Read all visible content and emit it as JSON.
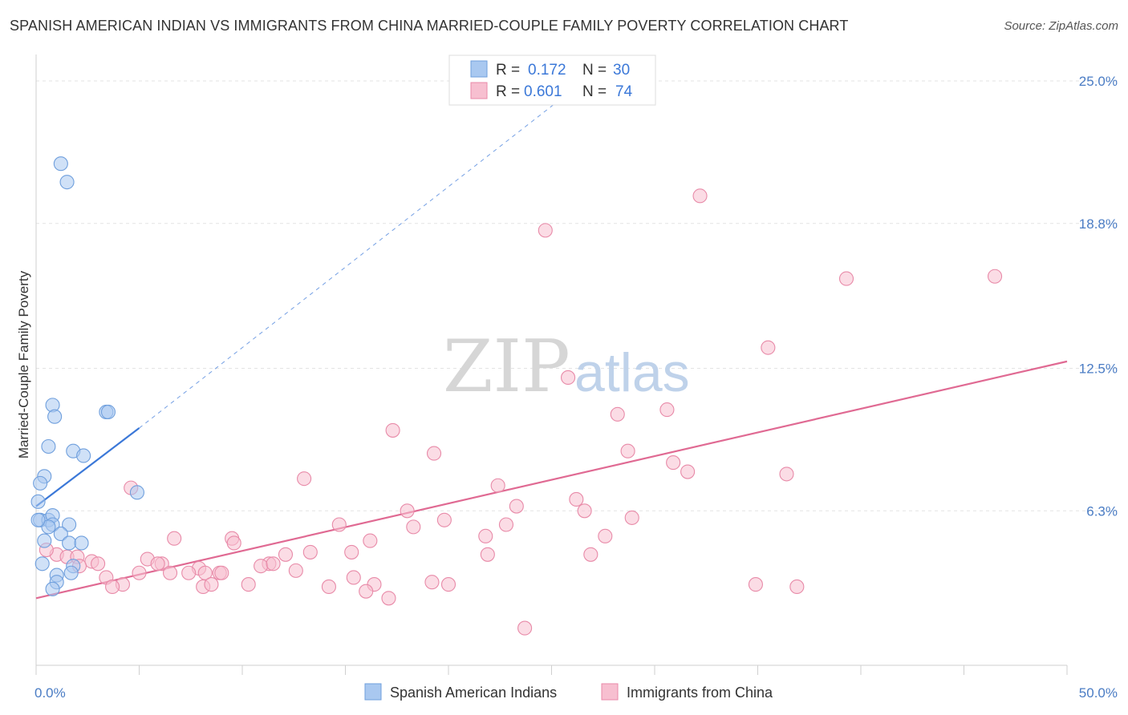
{
  "header": {
    "title": "SPANISH AMERICAN INDIAN VS IMMIGRANTS FROM CHINA MARRIED-COUPLE FAMILY POVERTY CORRELATION CHART",
    "source": "Source: ZipAtlas.com"
  },
  "watermark": {
    "zip": "ZIP",
    "atlas": "atlas"
  },
  "legend_top": {
    "rows": [
      {
        "r_label": "R = ",
        "r_value": "0.172",
        "n_label": "N = ",
        "n_value": "30",
        "color": "#a9c8f0"
      },
      {
        "r_label": "R = ",
        "r_value": "0.601",
        "n_label": "N = ",
        "n_value": "74",
        "color": "#f7bfd0"
      }
    ]
  },
  "chart_data": {
    "type": "scatter",
    "title": "SPANISH AMERICAN INDIAN VS IMMIGRANTS FROM CHINA MARRIED-COUPLE FAMILY POVERTY CORRELATION CHART",
    "xlabel": "",
    "ylabel": "Married-Couple Family Poverty",
    "xlim": [
      0,
      50
    ],
    "ylim": [
      0,
      25.8
    ],
    "x_tick_labels": [
      {
        "value": 0,
        "label": "0.0%"
      },
      {
        "value": 50,
        "label": "50.0%"
      }
    ],
    "y_tick_labels": [
      {
        "value": 6.3,
        "label": "6.3%"
      },
      {
        "value": 12.5,
        "label": "12.5%"
      },
      {
        "value": 18.8,
        "label": "18.8%"
      },
      {
        "value": 25.0,
        "label": "25.0%"
      }
    ],
    "x_minor_ticks": [
      0,
      5,
      10,
      15,
      20,
      25,
      30,
      35,
      40,
      45,
      50
    ],
    "series": [
      {
        "name": "Spanish American Indians",
        "color": "#a9c8f0",
        "stroke": "#6f9fdd",
        "trend_color": "#3b78d8",
        "trend": {
          "x0": 0,
          "y0": 6.5,
          "x1": 5,
          "y1": 9.9,
          "dashed_to_x": 26,
          "dashed_to_y": 24.6
        },
        "points": [
          [
            1.2,
            21.4
          ],
          [
            1.5,
            20.6
          ],
          [
            0.8,
            10.9
          ],
          [
            0.9,
            10.4
          ],
          [
            3.4,
            10.6
          ],
          [
            3.5,
            10.6
          ],
          [
            0.6,
            9.1
          ],
          [
            1.8,
            8.9
          ],
          [
            2.3,
            8.7
          ],
          [
            0.4,
            7.8
          ],
          [
            0.2,
            7.5
          ],
          [
            4.9,
            7.1
          ],
          [
            0.1,
            6.7
          ],
          [
            0.2,
            5.9
          ],
          [
            0.6,
            5.9
          ],
          [
            0.8,
            6.1
          ],
          [
            0.8,
            5.7
          ],
          [
            1.6,
            5.7
          ],
          [
            0.6,
            5.6
          ],
          [
            1.2,
            5.3
          ],
          [
            0.4,
            5.0
          ],
          [
            1.6,
            4.9
          ],
          [
            2.2,
            4.9
          ],
          [
            1.8,
            3.9
          ],
          [
            0.3,
            4.0
          ],
          [
            1.7,
            3.6
          ],
          [
            1.0,
            3.5
          ],
          [
            1.0,
            3.2
          ],
          [
            0.8,
            2.9
          ],
          [
            0.1,
            5.9
          ]
        ]
      },
      {
        "name": "Immigrants from China",
        "color": "#f7bfd0",
        "stroke": "#e88aa8",
        "trend_color": "#e06a93",
        "trend": {
          "x0": 0,
          "y0": 2.5,
          "x1": 50,
          "y1": 12.8
        },
        "points": [
          [
            32.2,
            20.0
          ],
          [
            24.7,
            18.5
          ],
          [
            39.3,
            16.4
          ],
          [
            46.5,
            16.5
          ],
          [
            35.5,
            13.4
          ],
          [
            25.8,
            12.1
          ],
          [
            28.2,
            10.5
          ],
          [
            30.6,
            10.7
          ],
          [
            17.3,
            9.8
          ],
          [
            19.3,
            8.8
          ],
          [
            28.7,
            8.9
          ],
          [
            30.9,
            8.4
          ],
          [
            31.6,
            8.0
          ],
          [
            36.4,
            7.9
          ],
          [
            13.0,
            7.7
          ],
          [
            22.4,
            7.4
          ],
          [
            4.6,
            7.3
          ],
          [
            26.2,
            6.8
          ],
          [
            26.6,
            6.3
          ],
          [
            23.3,
            6.5
          ],
          [
            18.0,
            6.3
          ],
          [
            28.9,
            6.0
          ],
          [
            19.8,
            5.9
          ],
          [
            22.8,
            5.7
          ],
          [
            14.7,
            5.7
          ],
          [
            18.3,
            5.6
          ],
          [
            21.8,
            5.2
          ],
          [
            27.6,
            5.2
          ],
          [
            6.7,
            5.1
          ],
          [
            9.5,
            5.1
          ],
          [
            16.2,
            5.0
          ],
          [
            9.6,
            4.9
          ],
          [
            12.1,
            4.4
          ],
          [
            13.3,
            4.5
          ],
          [
            15.3,
            4.5
          ],
          [
            21.9,
            4.4
          ],
          [
            26.9,
            4.4
          ],
          [
            1.0,
            4.4
          ],
          [
            1.5,
            4.3
          ],
          [
            2.0,
            4.3
          ],
          [
            5.4,
            4.2
          ],
          [
            2.7,
            4.1
          ],
          [
            3.0,
            4.0
          ],
          [
            11.3,
            4.0
          ],
          [
            10.9,
            3.9
          ],
          [
            11.5,
            4.0
          ],
          [
            12.6,
            3.7
          ],
          [
            6.1,
            4.0
          ],
          [
            5.9,
            4.0
          ],
          [
            2.1,
            3.9
          ],
          [
            7.9,
            3.8
          ],
          [
            5.0,
            3.6
          ],
          [
            6.5,
            3.6
          ],
          [
            7.4,
            3.6
          ],
          [
            8.2,
            3.6
          ],
          [
            8.9,
            3.6
          ],
          [
            9.0,
            3.6
          ],
          [
            15.4,
            3.4
          ],
          [
            3.4,
            3.4
          ],
          [
            16.4,
            3.1
          ],
          [
            19.2,
            3.2
          ],
          [
            20.0,
            3.1
          ],
          [
            4.2,
            3.1
          ],
          [
            8.1,
            3.0
          ],
          [
            10.3,
            3.1
          ],
          [
            3.7,
            3.0
          ],
          [
            8.5,
            3.1
          ],
          [
            14.2,
            3.0
          ],
          [
            34.9,
            3.1
          ],
          [
            36.9,
            3.0
          ],
          [
            16.0,
            2.8
          ],
          [
            17.1,
            2.5
          ],
          [
            23.7,
            1.2
          ],
          [
            0.5,
            4.6
          ]
        ]
      }
    ],
    "legend_position": "bottom-center"
  }
}
